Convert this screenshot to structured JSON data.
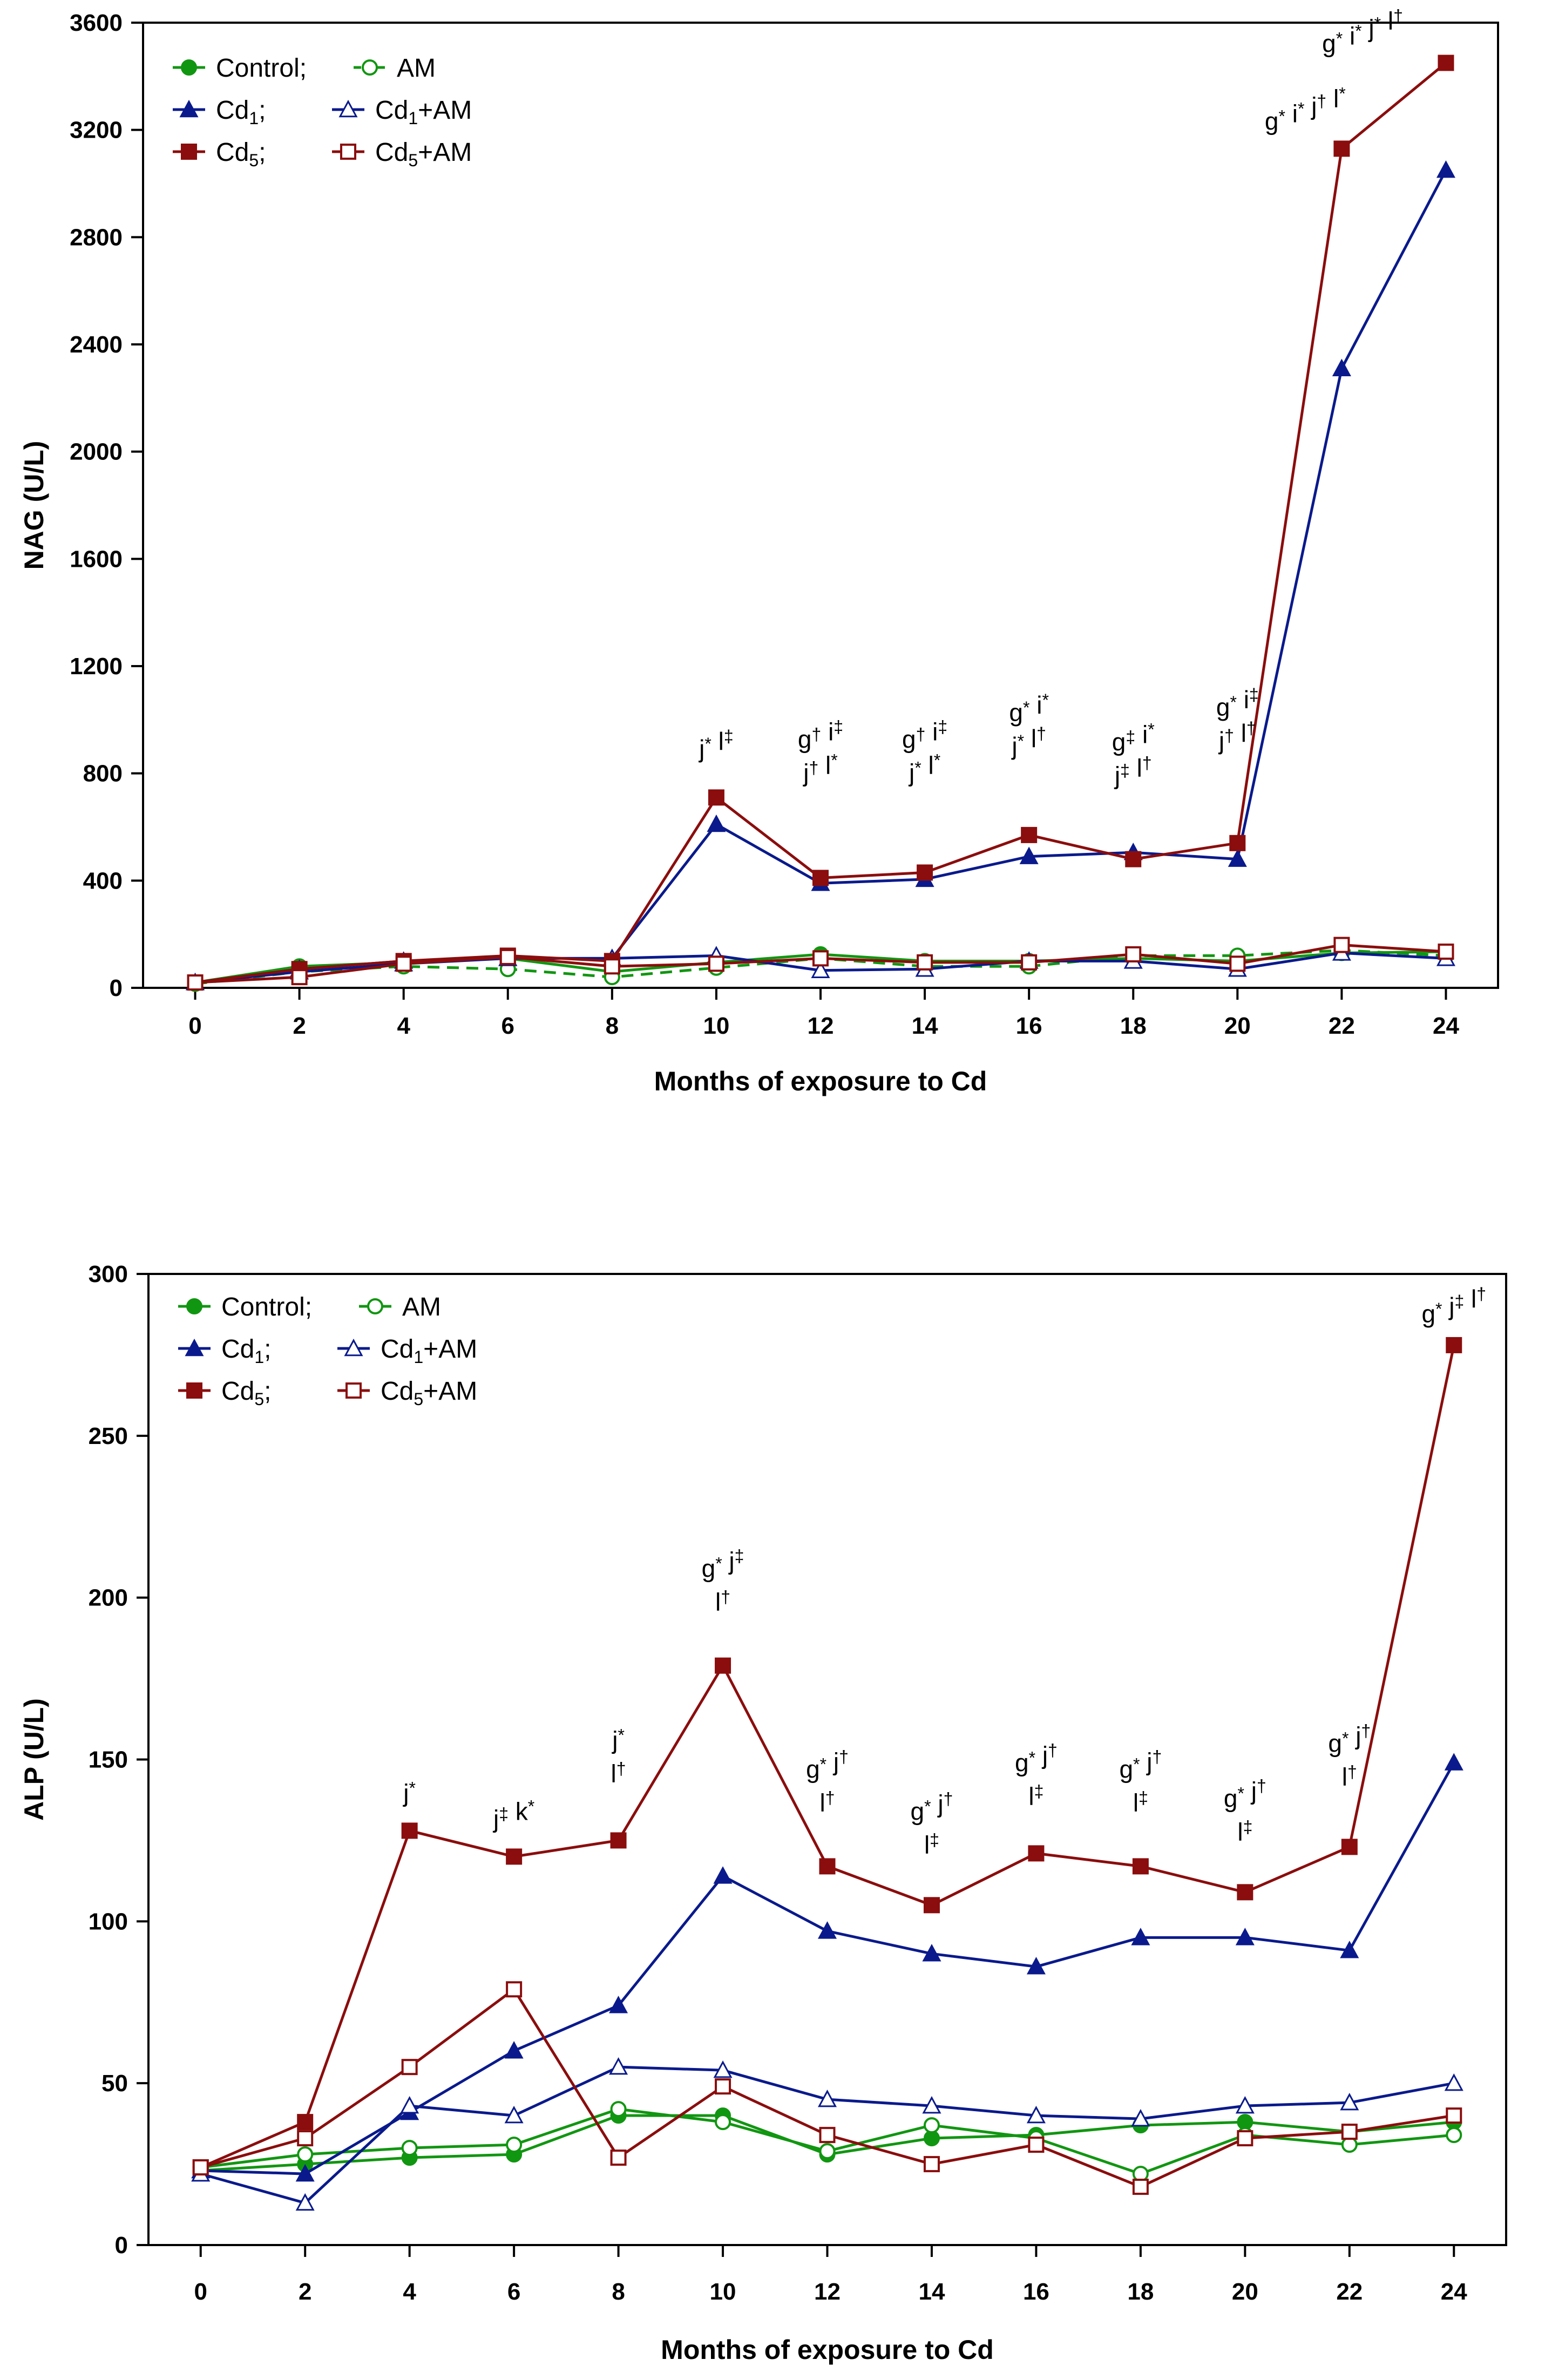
{
  "chart_data": [
    {
      "type": "line",
      "ylabel": "NAG (U/L)",
      "xlabel": "Months of exposure to Cd",
      "ylim": [
        0,
        3600
      ],
      "yticks": [
        0,
        400,
        800,
        1200,
        1600,
        2000,
        2400,
        2800,
        3200,
        3600
      ],
      "xlim": [
        -1,
        25
      ],
      "xticks": [
        0,
        2,
        4,
        6,
        8,
        10,
        12,
        14,
        16,
        18,
        20,
        22,
        24
      ],
      "legend": [
        {
          "row": 0,
          "a": "Control;",
          "b": "AM"
        },
        {
          "row": 1,
          "a": "Cd1;",
          "b": "Cd1+AM"
        },
        {
          "row": 2,
          "a": "Cd5;",
          "b": "Cd5+AM"
        }
      ],
      "series": [
        {
          "name": "Control",
          "color": "#119611",
          "marker": "circle",
          "filled": true,
          "dashed": false,
          "x": [
            0,
            2,
            4,
            6,
            8,
            10,
            12,
            14,
            16,
            18,
            20,
            22,
            24
          ],
          "values": [
            20,
            80,
            95,
            110,
            60,
            95,
            125,
            100,
            100,
            110,
            100,
            130,
            135
          ]
        },
        {
          "name": "AM",
          "color": "#119611",
          "marker": "circle",
          "filled": false,
          "dashed": true,
          "x": [
            0,
            2,
            4,
            6,
            8,
            10,
            12,
            14,
            16,
            18,
            20,
            22,
            24
          ],
          "values": [
            15,
            60,
            80,
            70,
            40,
            75,
            110,
            80,
            80,
            120,
            120,
            140,
            120
          ]
        },
        {
          "name": "Cd1",
          "color": "#0a1a8c",
          "marker": "triangle",
          "filled": true,
          "dashed": false,
          "x": [
            0,
            2,
            4,
            6,
            8,
            10,
            12,
            14,
            16,
            18,
            20,
            22,
            24
          ],
          "values": [
            20,
            70,
            100,
            110,
            110,
            610,
            390,
            405,
            490,
            505,
            480,
            2310,
            3050
          ]
        },
        {
          "name": "Cd1+AM",
          "color": "#0a1a8c",
          "marker": "triangle",
          "filled": false,
          "dashed": false,
          "x": [
            0,
            2,
            4,
            6,
            8,
            10,
            12,
            14,
            16,
            18,
            20,
            22,
            24
          ],
          "values": [
            20,
            60,
            90,
            110,
            110,
            120,
            65,
            70,
            100,
            100,
            70,
            130,
            110
          ]
        },
        {
          "name": "Cd5",
          "color": "#8b0d0d",
          "marker": "square",
          "filled": true,
          "dashed": false,
          "x": [
            0,
            2,
            4,
            6,
            8,
            10,
            12,
            14,
            16,
            18,
            20,
            22,
            24
          ],
          "values": [
            20,
            70,
            100,
            120,
            100,
            710,
            410,
            430,
            570,
            480,
            540,
            3130,
            3450
          ]
        },
        {
          "name": "Cd5+AM",
          "color": "#8b0d0d",
          "marker": "square",
          "filled": false,
          "dashed": false,
          "x": [
            0,
            2,
            4,
            6,
            8,
            10,
            12,
            14,
            16,
            18,
            20,
            22,
            24
          ],
          "values": [
            20,
            40,
            90,
            115,
            80,
            90,
            110,
            95,
            95,
            125,
            90,
            160,
            135
          ]
        }
      ],
      "annotations": [
        {
          "x": 10,
          "lines": [
            [
              {
                "t": "j"
              },
              {
                "s": "*"
              },
              {
                "t": " l"
              },
              {
                "s": "‡"
              }
            ]
          ],
          "baseline": 860
        },
        {
          "x": 12,
          "lines": [
            [
              {
                "t": "g"
              },
              {
                "s": "†"
              },
              {
                "t": " i"
              },
              {
                "s": "‡"
              }
            ],
            [
              {
                "t": "j"
              },
              {
                "s": "†"
              },
              {
                "t": " l"
              },
              {
                "s": "*"
              }
            ]
          ],
          "baseline": 770
        },
        {
          "x": 14,
          "lines": [
            [
              {
                "t": "g"
              },
              {
                "s": "†"
              },
              {
                "t": " i"
              },
              {
                "s": "‡"
              }
            ],
            [
              {
                "t": "j"
              },
              {
                "s": "*"
              },
              {
                "t": " l"
              },
              {
                "s": "*"
              }
            ]
          ],
          "baseline": 770
        },
        {
          "x": 16,
          "lines": [
            [
              {
                "t": "g"
              },
              {
                "s": "*"
              },
              {
                "t": " i"
              },
              {
                "s": "*"
              }
            ],
            [
              {
                "t": "j"
              },
              {
                "s": "*"
              },
              {
                "t": " l"
              },
              {
                "s": "†"
              }
            ]
          ],
          "baseline": 870
        },
        {
          "x": 18,
          "lines": [
            [
              {
                "t": "g"
              },
              {
                "s": "‡"
              },
              {
                "t": " i"
              },
              {
                "s": "*"
              }
            ],
            [
              {
                "t": "j"
              },
              {
                "s": "‡"
              },
              {
                "t": " l"
              },
              {
                "s": "†"
              }
            ]
          ],
          "baseline": 760
        },
        {
          "x": 20,
          "lines": [
            [
              {
                "t": "g"
              },
              {
                "s": "*"
              },
              {
                "t": " i"
              },
              {
                "s": "‡"
              }
            ],
            [
              {
                "t": "j"
              },
              {
                "s": "†"
              },
              {
                "t": " l"
              },
              {
                "s": "†"
              }
            ]
          ],
          "baseline": 890
        },
        {
          "x": 21.3,
          "lines": [
            [
              {
                "t": "g"
              },
              {
                "s": "*"
              },
              {
                "t": " i"
              },
              {
                "s": "*"
              },
              {
                "t": " j"
              },
              {
                "s": "†"
              },
              {
                "t": " l"
              },
              {
                "s": "*"
              }
            ]
          ],
          "baseline": 3200
        },
        {
          "x": 22.4,
          "lines": [
            [
              {
                "t": "g"
              },
              {
                "s": "*"
              },
              {
                "t": " i"
              },
              {
                "s": "*"
              },
              {
                "t": " j"
              },
              {
                "s": "*"
              },
              {
                "t": " l"
              },
              {
                "s": "†"
              }
            ]
          ],
          "baseline": 3490
        }
      ]
    },
    {
      "type": "line",
      "ylabel": "ALP (U/L)",
      "xlabel": "Months of exposure to Cd",
      "ylim": [
        0,
        300
      ],
      "yticks": [
        0,
        50,
        100,
        150,
        200,
        250,
        300
      ],
      "xlim": [
        -1,
        25
      ],
      "xticks": [
        0,
        2,
        4,
        6,
        8,
        10,
        12,
        14,
        16,
        18,
        20,
        22,
        24
      ],
      "legend": [
        {
          "row": 0,
          "a": "Control;",
          "b": "AM"
        },
        {
          "row": 1,
          "a": "Cd1;",
          "b": "Cd1+AM"
        },
        {
          "row": 2,
          "a": "Cd5;",
          "b": "Cd5+AM"
        }
      ],
      "series": [
        {
          "name": "Control",
          "color": "#119611",
          "marker": "circle",
          "filled": true,
          "dashed": false,
          "x": [
            0,
            2,
            4,
            6,
            8,
            10,
            12,
            14,
            16,
            18,
            20,
            22,
            24
          ],
          "values": [
            23,
            25,
            27,
            28,
            40,
            40,
            28,
            33,
            34,
            37,
            38,
            35,
            38
          ]
        },
        {
          "name": "AM",
          "color": "#119611",
          "marker": "circle",
          "filled": false,
          "dashed": false,
          "x": [
            0,
            2,
            4,
            6,
            8,
            10,
            12,
            14,
            16,
            18,
            20,
            22,
            24
          ],
          "values": [
            24,
            28,
            30,
            31,
            42,
            38,
            29,
            37,
            33,
            22,
            34,
            31,
            34
          ]
        },
        {
          "name": "Cd1",
          "color": "#0a1a8c",
          "marker": "triangle",
          "filled": true,
          "dashed": false,
          "x": [
            0,
            2,
            4,
            6,
            8,
            10,
            12,
            14,
            16,
            18,
            20,
            22,
            24
          ],
          "values": [
            23,
            22,
            41,
            60,
            74,
            114,
            97,
            90,
            86,
            95,
            95,
            91,
            149
          ]
        },
        {
          "name": "Cd1+AM",
          "color": "#0a1a8c",
          "marker": "triangle",
          "filled": false,
          "dashed": false,
          "x": [
            0,
            2,
            4,
            6,
            8,
            10,
            12,
            14,
            16,
            18,
            20,
            22,
            24
          ],
          "values": [
            22,
            13,
            43,
            40,
            55,
            54,
            45,
            43,
            40,
            39,
            43,
            44,
            50
          ]
        },
        {
          "name": "Cd5",
          "color": "#8b0d0d",
          "marker": "square",
          "filled": true,
          "dashed": false,
          "x": [
            0,
            2,
            4,
            6,
            8,
            10,
            12,
            14,
            16,
            18,
            20,
            22,
            24
          ],
          "values": [
            24,
            38,
            128,
            120,
            125,
            179,
            117,
            105,
            121,
            117,
            109,
            123,
            278
          ]
        },
        {
          "name": "Cd5+AM",
          "color": "#8b0d0d",
          "marker": "square",
          "filled": false,
          "dashed": false,
          "x": [
            0,
            2,
            4,
            6,
            8,
            10,
            12,
            14,
            16,
            18,
            20,
            22,
            24
          ],
          "values": [
            24,
            33,
            55,
            79,
            27,
            49,
            34,
            25,
            31,
            18,
            33,
            35,
            40
          ]
        }
      ],
      "annotations": [
        {
          "x": 4,
          "lines": [
            [
              {
                "t": "j"
              },
              {
                "s": "*"
              }
            ]
          ],
          "baseline": 137
        },
        {
          "x": 6,
          "lines": [
            [
              {
                "t": "j"
              },
              {
                "s": "‡"
              },
              {
                "t": " k"
              },
              {
                "s": "*"
              }
            ]
          ],
          "baseline": 129
        },
        {
          "x": 8,
          "lines": [
            [
              {
                "t": "j"
              },
              {
                "s": "*"
              }
            ],
            [
              {
                "t": "l"
              },
              {
                "s": "†"
              }
            ]
          ],
          "baseline": 143
        },
        {
          "x": 10,
          "lines": [
            [
              {
                "t": "g"
              },
              {
                "s": "*"
              },
              {
                "t": " j"
              },
              {
                "s": "‡"
              }
            ],
            [
              {
                "t": "l"
              },
              {
                "s": "†"
              }
            ]
          ],
          "baseline": 196
        },
        {
          "x": 12,
          "lines": [
            [
              {
                "t": "g"
              },
              {
                "s": "*"
              },
              {
                "t": " j"
              },
              {
                "s": "†"
              }
            ],
            [
              {
                "t": "l"
              },
              {
                "s": "†"
              }
            ]
          ],
          "baseline": 134
        },
        {
          "x": 14,
          "lines": [
            [
              {
                "t": "g"
              },
              {
                "s": "*"
              },
              {
                "t": " j"
              },
              {
                "s": "†"
              }
            ],
            [
              {
                "t": "l"
              },
              {
                "s": "‡"
              }
            ]
          ],
          "baseline": 121
        },
        {
          "x": 16,
          "lines": [
            [
              {
                "t": "g"
              },
              {
                "s": "*"
              },
              {
                "t": " j"
              },
              {
                "s": "†"
              }
            ],
            [
              {
                "t": "l"
              },
              {
                "s": "‡"
              }
            ]
          ],
          "baseline": 136
        },
        {
          "x": 18,
          "lines": [
            [
              {
                "t": "g"
              },
              {
                "s": "*"
              },
              {
                "t": " j"
              },
              {
                "s": "†"
              }
            ],
            [
              {
                "t": "l"
              },
              {
                "s": "‡"
              }
            ]
          ],
          "baseline": 134
        },
        {
          "x": 20,
          "lines": [
            [
              {
                "t": "g"
              },
              {
                "s": "*"
              },
              {
                "t": " j"
              },
              {
                "s": "†"
              }
            ],
            [
              {
                "t": "l"
              },
              {
                "s": "‡"
              }
            ]
          ],
          "baseline": 125
        },
        {
          "x": 22,
          "lines": [
            [
              {
                "t": "g"
              },
              {
                "s": "*"
              },
              {
                "t": " j"
              },
              {
                "s": "†"
              }
            ],
            [
              {
                "t": "l"
              },
              {
                "s": "†"
              }
            ]
          ],
          "baseline": 142
        },
        {
          "x": 24,
          "lines": [
            [
              {
                "t": "g"
              },
              {
                "s": "*"
              },
              {
                "t": " j"
              },
              {
                "s": "‡"
              },
              {
                "t": " l"
              },
              {
                "s": "†"
              }
            ]
          ],
          "baseline": 285
        }
      ]
    }
  ]
}
